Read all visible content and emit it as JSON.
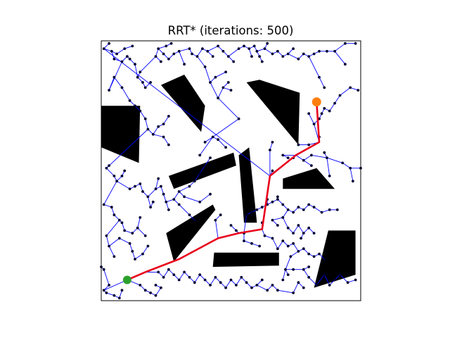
{
  "chart_data": {
    "type": "scatter",
    "title": "RRT* (iterations: 500)",
    "xlabel": "",
    "ylabel": "",
    "xlim": [
      0,
      100
    ],
    "ylim": [
      0,
      100
    ],
    "axes_visible": false,
    "grid": false,
    "colors": {
      "tree_edge": "#0000ff",
      "node": "#000033",
      "obstacle": "#000000",
      "path": "#e8001c",
      "start": "#2ca02c",
      "goal": "#ff7f0e"
    },
    "start": [
      10,
      8
    ],
    "goal": [
      83,
      76.5
    ],
    "path": [
      [
        10,
        8
      ],
      [
        17,
        11
      ],
      [
        30,
        16
      ],
      [
        45,
        24
      ],
      [
        53,
        26
      ],
      [
        62,
        27.5
      ],
      [
        65,
        48
      ],
      [
        75,
        56
      ],
      [
        84,
        61
      ],
      [
        83,
        76.5
      ]
    ],
    "obstacles": [
      [
        [
          0,
          75
        ],
        [
          15,
          75
        ],
        [
          14.5,
          53
        ],
        [
          0,
          59
        ]
      ],
      [
        [
          23,
          83
        ],
        [
          32,
          87
        ],
        [
          40,
          75
        ],
        [
          38.5,
          65
        ]
      ],
      [
        [
          56,
          84
        ],
        [
          61,
          85
        ],
        [
          76.5,
          80
        ],
        [
          76,
          60
        ]
      ],
      [
        [
          26,
          48
        ],
        [
          51,
          57
        ],
        [
          52,
          52
        ],
        [
          28,
          43
        ]
      ],
      [
        [
          53,
          56
        ],
        [
          57,
          59
        ],
        [
          60,
          30
        ],
        [
          55,
          30
        ]
      ],
      [
        [
          70,
          47
        ],
        [
          83,
          51
        ],
        [
          90,
          43
        ],
        [
          70,
          43
        ]
      ],
      [
        [
          25,
          26
        ],
        [
          43,
          37
        ],
        [
          44,
          35
        ],
        [
          28,
          15
        ]
      ],
      [
        [
          43.5,
          18.5
        ],
        [
          68.5,
          18.5
        ],
        [
          68.5,
          13.5
        ],
        [
          43,
          13
        ]
      ],
      [
        [
          87.5,
          27
        ],
        [
          98,
          27
        ],
        [
          98,
          10
        ],
        [
          82,
          5
        ]
      ]
    ],
    "tree_nodes": [
      [
        1,
        97
      ],
      [
        3,
        99
      ],
      [
        4,
        96
      ],
      [
        5,
        93
      ],
      [
        6,
        95
      ],
      [
        8,
        92
      ],
      [
        9,
        97
      ],
      [
        10,
        94
      ],
      [
        11,
        93
      ],
      [
        12,
        98
      ],
      [
        13,
        91
      ],
      [
        14,
        86
      ],
      [
        15,
        88
      ],
      [
        16,
        84
      ],
      [
        17,
        82
      ],
      [
        19,
        84
      ],
      [
        21,
        94
      ],
      [
        22,
        97
      ],
      [
        23,
        92
      ],
      [
        24,
        95
      ],
      [
        25,
        98
      ],
      [
        26,
        93
      ],
      [
        27,
        99
      ],
      [
        28,
        95
      ],
      [
        30,
        96
      ],
      [
        32,
        91
      ],
      [
        34,
        97
      ],
      [
        35,
        95
      ],
      [
        37,
        94
      ],
      [
        39,
        97
      ],
      [
        41,
        96
      ],
      [
        43,
        94
      ],
      [
        45,
        98
      ],
      [
        47,
        96
      ],
      [
        49,
        94
      ],
      [
        51,
        92
      ],
      [
        53,
        97
      ],
      [
        55,
        98
      ],
      [
        57,
        97
      ],
      [
        58,
        94
      ],
      [
        59,
        98
      ],
      [
        60,
        96
      ],
      [
        61,
        94
      ],
      [
        62,
        92
      ],
      [
        63,
        97
      ],
      [
        64,
        99
      ],
      [
        66,
        95
      ],
      [
        68,
        96
      ],
      [
        70,
        94
      ],
      [
        72,
        95
      ],
      [
        74,
        97
      ],
      [
        76,
        93
      ],
      [
        78,
        95
      ],
      [
        80,
        94
      ],
      [
        82,
        95
      ],
      [
        84,
        96
      ],
      [
        87,
        96
      ],
      [
        90,
        96
      ],
      [
        94,
        99
      ],
      [
        98,
        99
      ],
      [
        3,
        81
      ],
      [
        5,
        86
      ],
      [
        8,
        82
      ],
      [
        11,
        77
      ],
      [
        13,
        75
      ],
      [
        15,
        73
      ],
      [
        17,
        70
      ],
      [
        18,
        66
      ],
      [
        20,
        64
      ],
      [
        22,
        67
      ],
      [
        24,
        63
      ],
      [
        26,
        60
      ],
      [
        24,
        68
      ],
      [
        26,
        71
      ],
      [
        40,
        90
      ],
      [
        42,
        84
      ],
      [
        44,
        86
      ],
      [
        45,
        78
      ],
      [
        47,
        82
      ],
      [
        48,
        88
      ],
      [
        49,
        84
      ],
      [
        50,
        81
      ],
      [
        53,
        70
      ],
      [
        43,
        63
      ],
      [
        38,
        56
      ],
      [
        40,
        61
      ],
      [
        45,
        62
      ],
      [
        48,
        59
      ],
      [
        65,
        58
      ],
      [
        66,
        61
      ],
      [
        70,
        56
      ],
      [
        72,
        55
      ],
      [
        80,
        60
      ],
      [
        82,
        68
      ],
      [
        84,
        70
      ],
      [
        85,
        72
      ],
      [
        86,
        74
      ],
      [
        88,
        73
      ],
      [
        90,
        76
      ],
      [
        92,
        79
      ],
      [
        96,
        82
      ],
      [
        99,
        81
      ],
      [
        94,
        91
      ],
      [
        84,
        86
      ],
      [
        80,
        72
      ],
      [
        86,
        82
      ],
      [
        78,
        54
      ],
      [
        81,
        56
      ],
      [
        87,
        55
      ],
      [
        93,
        53
      ],
      [
        96,
        51
      ],
      [
        100,
        51
      ],
      [
        97,
        46
      ],
      [
        88,
        48
      ],
      [
        86,
        57
      ],
      [
        84,
        63
      ],
      [
        81,
        52
      ],
      [
        76,
        60
      ],
      [
        66,
        50
      ],
      [
        74,
        55
      ],
      [
        2,
        51
      ],
      [
        3,
        52
      ],
      [
        5,
        48
      ],
      [
        6,
        46
      ],
      [
        8,
        48
      ],
      [
        9,
        50
      ],
      [
        11,
        43
      ],
      [
        13,
        44
      ],
      [
        15,
        45
      ],
      [
        16,
        42
      ],
      [
        18,
        40
      ],
      [
        19,
        36
      ],
      [
        20,
        38
      ],
      [
        21,
        43
      ],
      [
        22,
        47
      ],
      [
        23,
        44
      ],
      [
        24,
        41
      ],
      [
        25,
        38
      ],
      [
        26,
        35
      ],
      [
        28,
        39
      ],
      [
        30,
        42
      ],
      [
        32,
        40
      ],
      [
        34,
        44
      ],
      [
        36,
        46
      ],
      [
        38,
        49
      ],
      [
        40,
        52
      ],
      [
        42,
        55
      ],
      [
        30,
        37
      ],
      [
        34,
        33
      ],
      [
        36,
        31
      ],
      [
        38,
        38
      ],
      [
        42,
        41
      ],
      [
        44,
        31
      ],
      [
        46,
        33
      ],
      [
        50,
        29
      ],
      [
        52,
        27
      ],
      [
        55,
        26
      ],
      [
        1,
        37
      ],
      [
        4,
        36
      ],
      [
        5,
        33
      ],
      [
        7,
        31
      ],
      [
        2,
        25
      ],
      [
        3,
        21
      ],
      [
        5,
        17
      ],
      [
        7,
        24
      ],
      [
        8,
        30
      ],
      [
        9,
        27
      ],
      [
        11,
        22
      ],
      [
        12,
        26
      ],
      [
        12,
        19
      ],
      [
        13,
        16
      ],
      [
        14,
        28
      ],
      [
        15,
        32
      ],
      [
        16,
        18
      ],
      [
        17,
        25
      ],
      [
        18,
        21
      ],
      [
        56,
        33
      ],
      [
        58,
        34
      ],
      [
        60,
        35
      ],
      [
        62,
        36
      ],
      [
        64,
        37
      ],
      [
        66,
        38
      ],
      [
        68,
        39
      ],
      [
        70,
        37
      ],
      [
        72,
        35
      ],
      [
        74,
        34
      ],
      [
        76,
        36
      ],
      [
        78,
        35
      ],
      [
        80,
        37
      ],
      [
        82,
        36
      ],
      [
        85,
        34
      ],
      [
        88,
        35
      ],
      [
        91,
        35
      ],
      [
        68,
        40
      ],
      [
        64,
        39
      ],
      [
        70,
        32
      ],
      [
        72,
        28
      ],
      [
        74,
        26
      ],
      [
        76,
        29
      ],
      [
        78,
        26
      ],
      [
        80,
        28
      ],
      [
        82,
        26
      ],
      [
        66,
        31
      ],
      [
        62,
        30
      ],
      [
        68,
        29
      ],
      [
        55,
        23
      ],
      [
        58,
        22
      ],
      [
        61,
        21
      ],
      [
        63,
        25
      ],
      [
        66,
        24
      ],
      [
        68,
        20
      ],
      [
        70,
        23
      ],
      [
        72,
        21
      ],
      [
        74,
        22
      ],
      [
        76,
        19
      ],
      [
        78,
        20
      ],
      [
        80,
        18
      ],
      [
        82,
        17
      ],
      [
        84,
        18
      ],
      [
        86,
        16
      ],
      [
        77,
        24
      ],
      [
        73,
        17
      ],
      [
        71,
        12
      ],
      [
        74,
        12
      ],
      [
        78,
        12
      ],
      [
        80,
        13
      ],
      [
        22,
        11
      ],
      [
        24,
        9
      ],
      [
        26,
        12
      ],
      [
        28,
        10
      ],
      [
        30,
        8
      ],
      [
        32,
        11
      ],
      [
        34,
        9
      ],
      [
        36,
        7
      ],
      [
        38,
        10
      ],
      [
        40,
        8
      ],
      [
        42,
        6
      ],
      [
        44,
        9
      ],
      [
        46,
        7
      ],
      [
        48,
        5
      ],
      [
        50,
        8
      ],
      [
        52,
        6
      ],
      [
        54,
        9
      ],
      [
        56,
        7
      ],
      [
        58,
        5
      ],
      [
        60,
        6
      ],
      [
        62,
        8
      ],
      [
        64,
        4
      ],
      [
        66,
        6
      ],
      [
        68,
        4
      ],
      [
        70,
        8
      ],
      [
        72,
        10
      ],
      [
        74,
        3
      ],
      [
        76,
        7
      ],
      [
        78,
        5
      ],
      [
        80,
        9
      ],
      [
        83,
        6
      ],
      [
        86,
        10
      ],
      [
        88,
        6
      ],
      [
        90,
        8
      ],
      [
        92,
        10
      ],
      [
        95,
        7
      ],
      [
        98,
        8
      ],
      [
        15,
        6
      ],
      [
        17,
        4
      ],
      [
        19,
        3
      ],
      [
        21,
        2
      ],
      [
        23,
        5
      ],
      [
        1,
        4
      ],
      [
        2,
        3
      ],
      [
        3,
        6
      ],
      [
        1,
        12
      ],
      [
        0,
        13
      ],
      [
        5,
        2
      ],
      [
        7,
        1
      ],
      [
        8,
        4
      ],
      [
        21,
        6
      ]
    ]
  }
}
